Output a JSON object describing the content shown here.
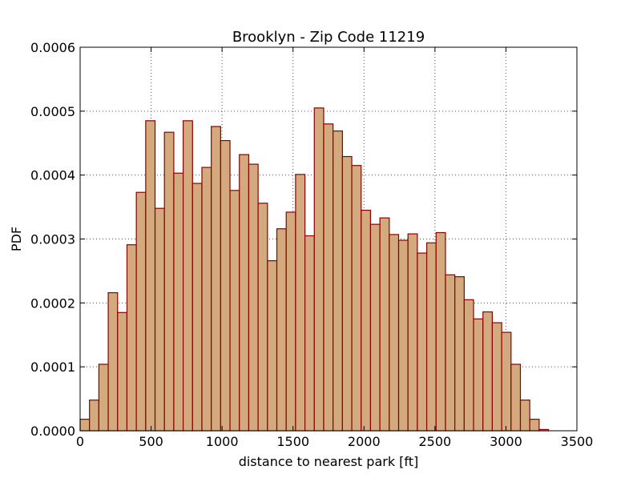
{
  "chart_data": {
    "type": "bar",
    "title": "Brooklyn - Zip Code 11219",
    "xlabel": "distance to nearest park [ft]",
    "ylabel": "PDF",
    "xlim": [
      0,
      3500
    ],
    "ylim": [
      0,
      0.0006
    ],
    "grid": true,
    "bin_width": 66,
    "bin_start": 0,
    "x_ticks": [
      "0",
      "500",
      "1000",
      "1500",
      "2000",
      "2500",
      "3000",
      "3500"
    ],
    "x_tick_values": [
      0,
      500,
      1000,
      1500,
      2000,
      2500,
      3000,
      3500
    ],
    "y_ticks": [
      "0.0000",
      "0.0001",
      "0.0002",
      "0.0003",
      "0.0004",
      "0.0005",
      "0.0006"
    ],
    "y_tick_values": [
      0,
      0.0001,
      0.0002,
      0.0003,
      0.0004,
      0.0005,
      0.0006
    ],
    "values": [
      1.8e-05,
      4.8e-05,
      0.000104,
      0.000216,
      0.000185,
      0.000291,
      0.000373,
      0.000485,
      0.000348,
      0.000467,
      0.000403,
      0.000485,
      0.000387,
      0.000412,
      0.000476,
      0.000454,
      0.000376,
      0.000432,
      0.000417,
      0.000356,
      0.000266,
      0.000316,
      0.000342,
      0.000401,
      0.000305,
      0.000505,
      0.00048,
      0.000469,
      0.000429,
      0.000415,
      0.000345,
      0.000323,
      0.000333,
      0.000307,
      0.000298,
      0.000308,
      0.000278,
      0.000294,
      0.00031,
      0.000244,
      0.000241,
      0.000205,
      0.000175,
      0.000186,
      0.000169,
      0.000154,
      0.000104,
      4.8e-05,
      1.8e-05,
      2e-06
    ],
    "colors": {
      "bar_fill": "#d2aa7d",
      "bar_edge": "#8b0000",
      "grid": "#555555"
    }
  }
}
